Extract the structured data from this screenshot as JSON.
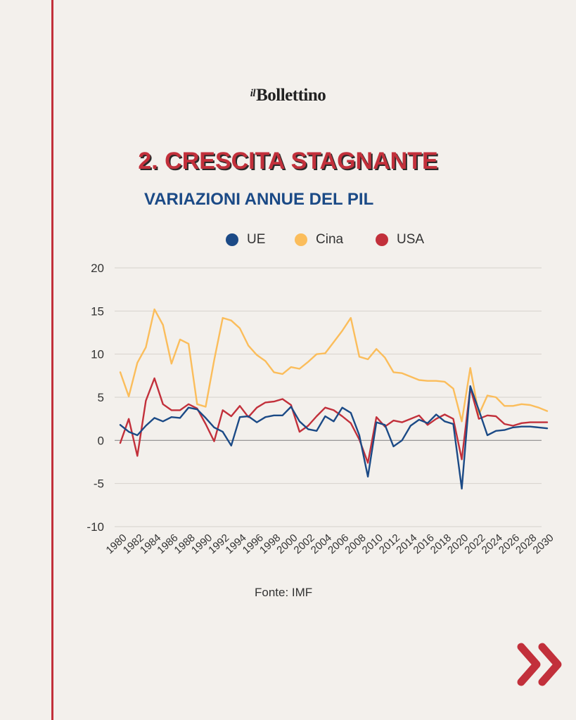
{
  "brand": {
    "logo_prefix": "il",
    "logo_name": "Bollettino"
  },
  "title": "2. CRESCITA STAGNANTE",
  "subtitle": "VARIAZIONI ANNUE DEL PIL",
  "source": "Fonte: IMF",
  "colors": {
    "UE": "#1b4a86",
    "Cina": "#fbbd5b",
    "USA": "#c2303b",
    "accent": "#c2303b"
  },
  "next_icon": "double-chevron-right-icon",
  "chart_data": {
    "type": "line",
    "title": "VARIAZIONI ANNUE DEL PIL",
    "xlabel": "",
    "ylabel": "",
    "ylim": [
      -10,
      20
    ],
    "yticks": [
      20,
      15,
      10,
      5,
      0,
      -5,
      -10
    ],
    "xticks": [
      1980,
      1982,
      1984,
      1986,
      1988,
      1990,
      1992,
      1994,
      1996,
      1998,
      2000,
      2002,
      2004,
      2006,
      2008,
      2010,
      2012,
      2014,
      2016,
      2018,
      2020,
      2022,
      2024,
      2026,
      2028,
      2030
    ],
    "grid": true,
    "legend_position": "top-center",
    "x": [
      1980,
      1981,
      1982,
      1983,
      1984,
      1985,
      1986,
      1987,
      1988,
      1989,
      1990,
      1991,
      1992,
      1993,
      1994,
      1995,
      1996,
      1997,
      1998,
      1999,
      2000,
      2001,
      2002,
      2003,
      2004,
      2005,
      2006,
      2007,
      2008,
      2009,
      2010,
      2011,
      2012,
      2013,
      2014,
      2015,
      2016,
      2017,
      2018,
      2019,
      2020,
      2021,
      2022,
      2023,
      2024,
      2025,
      2026,
      2027,
      2028,
      2029,
      2030
    ],
    "series": [
      {
        "name": "UE",
        "color": "#1b4a86",
        "values": [
          1.8,
          1.0,
          0.6,
          1.7,
          2.6,
          2.2,
          2.7,
          2.6,
          3.8,
          3.6,
          2.6,
          1.5,
          1.0,
          -0.6,
          2.7,
          2.8,
          2.1,
          2.7,
          2.9,
          2.9,
          3.9,
          2.2,
          1.3,
          1.1,
          2.8,
          2.2,
          3.8,
          3.2,
          0.6,
          -4.2,
          2.1,
          1.8,
          -0.7,
          0.0,
          1.7,
          2.4,
          2.0,
          3.0,
          2.2,
          1.9,
          -5.6,
          6.3,
          3.5,
          0.6,
          1.1,
          1.2,
          1.5,
          1.6,
          1.6,
          1.5,
          1.4
        ]
      },
      {
        "name": "Cina",
        "color": "#fbbd5b",
        "values": [
          7.9,
          5.1,
          9.0,
          10.8,
          15.2,
          13.4,
          8.9,
          11.7,
          11.2,
          4.2,
          3.9,
          9.3,
          14.2,
          13.9,
          13.0,
          11.0,
          9.9,
          9.2,
          7.9,
          7.7,
          8.5,
          8.3,
          9.1,
          10.0,
          10.1,
          11.4,
          12.7,
          14.2,
          9.7,
          9.4,
          10.6,
          9.6,
          7.9,
          7.8,
          7.4,
          7.0,
          6.9,
          6.9,
          6.8,
          6.0,
          2.2,
          8.4,
          3.0,
          5.2,
          5.0,
          4.0,
          4.0,
          4.2,
          4.1,
          3.8,
          3.4
        ]
      },
      {
        "name": "USA",
        "color": "#c2303b",
        "values": [
          -0.3,
          2.5,
          -1.8,
          4.6,
          7.2,
          4.2,
          3.5,
          3.5,
          4.2,
          3.7,
          1.9,
          -0.1,
          3.5,
          2.8,
          4.0,
          2.7,
          3.8,
          4.4,
          4.5,
          4.8,
          4.1,
          1.0,
          1.7,
          2.8,
          3.8,
          3.5,
          2.8,
          2.0,
          0.1,
          -2.6,
          2.7,
          1.6,
          2.3,
          2.1,
          2.5,
          2.9,
          1.8,
          2.5,
          3.0,
          2.5,
          -2.2,
          6.1,
          2.5,
          2.9,
          2.8,
          1.9,
          1.7,
          2.0,
          2.1,
          2.1,
          2.1
        ]
      }
    ]
  }
}
